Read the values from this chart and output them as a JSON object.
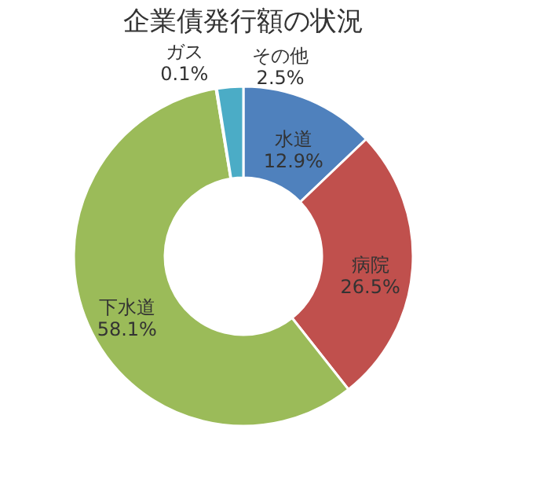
{
  "chart_data": {
    "type": "donut",
    "title": "企業債発行額の状況",
    "categories": [
      "水道",
      "病院",
      "下水道",
      "ガス",
      "その他"
    ],
    "values": [
      12.9,
      26.5,
      58.1,
      0.1,
      2.5
    ],
    "colors": [
      "#4f81bd",
      "#c0504d",
      "#9bbb59",
      "#8064a2",
      "#4bacc6"
    ],
    "value_labels": [
      "12.9%",
      "26.5%",
      "58.1%",
      "0.1%",
      "2.5%"
    ],
    "legend": false
  }
}
